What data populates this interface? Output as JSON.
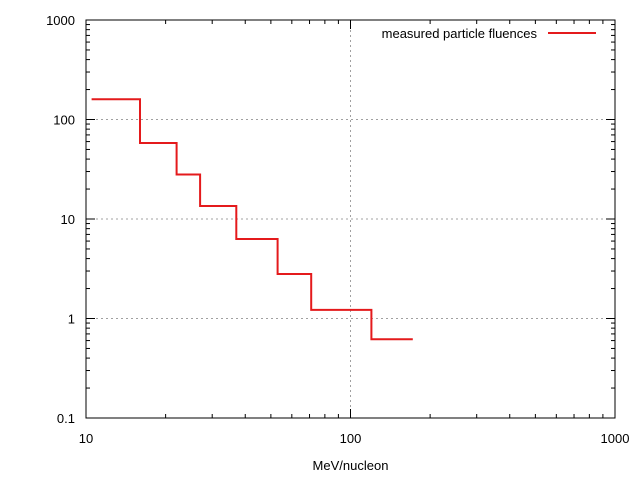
{
  "chart_data": {
    "type": "line",
    "title": "",
    "xlabel": "MeV/nucleon",
    "ylabel": "",
    "x_scale": "log",
    "y_scale": "log",
    "xlim": [
      10,
      1000
    ],
    "ylim": [
      0.1,
      1000
    ],
    "x_ticks": [
      "10",
      "100",
      "1000"
    ],
    "y_ticks": [
      "0.1",
      "1",
      "10",
      "100",
      "1000"
    ],
    "grid": true,
    "legend_position": "top-right",
    "line_style": "step",
    "series": [
      {
        "name": "measured particle fluences",
        "color": "#e41a1c",
        "bins": [
          {
            "x_start": 10.5,
            "x_end": 16,
            "y": 160
          },
          {
            "x_start": 16,
            "x_end": 22,
            "y": 58
          },
          {
            "x_start": 22,
            "x_end": 27,
            "y": 28
          },
          {
            "x_start": 27,
            "x_end": 37,
            "y": 13.5
          },
          {
            "x_start": 37,
            "x_end": 53,
            "y": 6.3
          },
          {
            "x_start": 53,
            "x_end": 71,
            "y": 2.8
          },
          {
            "x_start": 71,
            "x_end": 120,
            "y": 1.22
          },
          {
            "x_start": 120,
            "x_end": 172,
            "y": 0.62
          }
        ]
      }
    ]
  }
}
